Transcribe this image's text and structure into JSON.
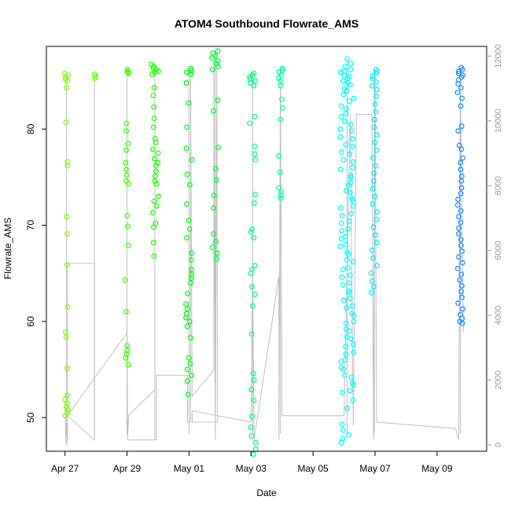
{
  "chart_data": {
    "type": "scatter",
    "title": "ATOM4 Southbound Flowrate_AMS",
    "xlabel": "Date",
    "ylabel": "Flowrate_AMS",
    "x_axis": {
      "unit": "days since Apr 27",
      "range": [
        -0.6,
        13.6
      ],
      "ticks": [
        {
          "label": "Apr 27",
          "value": 0
        },
        {
          "label": "Apr 29",
          "value": 2
        },
        {
          "label": "May 01",
          "value": 4
        },
        {
          "label": "May 03",
          "value": 6
        },
        {
          "label": "May 05",
          "value": 8
        },
        {
          "label": "May 07",
          "value": 10
        },
        {
          "label": "May 09",
          "value": 12
        }
      ]
    },
    "y_axis_left": {
      "range": [
        46.5,
        88.6
      ],
      "ticks": [
        50,
        60,
        70,
        80
      ]
    },
    "y_axis_right": {
      "range": [
        -200,
        12300
      ],
      "ticks": [
        0,
        2000,
        4000,
        6000,
        8000,
        10000,
        12000
      ],
      "color": "#999999"
    },
    "trace_color": "#c0c0c0",
    "clusters": [
      {
        "x_center": 0.05,
        "x_spread": 0.06,
        "color": "#7fff00",
        "y_values": [
          85.8,
          85.6,
          85.4,
          85.2,
          85.0,
          84.3,
          80.7,
          76.6,
          76.2,
          70.9,
          69.1,
          65.9,
          61.5,
          58.9,
          58.4,
          55.1,
          52.3,
          51.9,
          51.5,
          51.1,
          50.8,
          50.5,
          50.2
        ]
      },
      {
        "x_center": 0.95,
        "x_spread": 0.05,
        "color": "#66ff00",
        "y_values": [
          85.7,
          85.5,
          85.3
        ]
      },
      {
        "x_center": 2.0,
        "x_spread": 0.06,
        "color": "#3cff00",
        "y_values": [
          86.2,
          86.0,
          85.9,
          85.8,
          80.6,
          79.8,
          78.5,
          77.8,
          76.5,
          75.8,
          75.2,
          74.6,
          74.3,
          71.0,
          69.9,
          67.9,
          64.3,
          61.0,
          57.5,
          57.0,
          56.6,
          56.2,
          55.5
        ]
      },
      {
        "x_center": 2.9,
        "x_spread": 0.13,
        "color": "#1eff00",
        "y_values": [
          86.7,
          86.5,
          86.3,
          86.2,
          86.0,
          85.9,
          85.7,
          84.3,
          83.5,
          82.3,
          81.1,
          80.2,
          79.0,
          78.6,
          77.9,
          77.5,
          76.9,
          76.5,
          76.2,
          75.6,
          75.1,
          74.6,
          74.3,
          73.0,
          72.5,
          72.0,
          71.3,
          70.2,
          69.8,
          68.2,
          66.8
        ]
      },
      {
        "x_center": 4.0,
        "x_spread": 0.1,
        "color": "#00ff11",
        "y_values": [
          86.3,
          86.1,
          85.9,
          85.7,
          84.8,
          82.7,
          80.2,
          78.0,
          76.8,
          75.3,
          74.2,
          72.2,
          70.5,
          69.6,
          68.7,
          67.1,
          66.4,
          65.4,
          64.9,
          64.5,
          64.0,
          62.9,
          61.8,
          61.3,
          60.8,
          60.4,
          60.0,
          59.5,
          58.3,
          56.2,
          55.6,
          55.0,
          54.4,
          53.8,
          52.4
        ]
      },
      {
        "x_center": 4.85,
        "x_spread": 0.1,
        "color": "#00ff33",
        "y_values": [
          88.1,
          87.9,
          87.6,
          87.4,
          87.1,
          86.8,
          86.5,
          86.2,
          83.0,
          81.9,
          78.1,
          75.9,
          74.7,
          73.1,
          71.8,
          69.1,
          68.3,
          67.7,
          67.1,
          66.5
        ]
      },
      {
        "x_center": 6.05,
        "x_spread": 0.1,
        "color": "#00ff88",
        "y_values": [
          85.8,
          85.6,
          85.4,
          85.2,
          85.0,
          84.8,
          84.5,
          81.3,
          80.6,
          78.2,
          77.4,
          76.8,
          73.2,
          72.3,
          69.6,
          69.3,
          68.7,
          65.8,
          65.4,
          65.0,
          63.6,
          62.8,
          61.6,
          58.7,
          54.6,
          53.9,
          52.9,
          51.8,
          50.1,
          49.0,
          48.1,
          47.4,
          46.7,
          46.2
        ]
      },
      {
        "x_center": 6.95,
        "x_spread": 0.08,
        "color": "#00ffaa",
        "y_values": [
          86.3,
          86.1,
          85.9,
          85.6,
          85.3,
          85.0,
          84.5,
          83.1,
          82.2,
          81.0,
          77.2,
          75.5,
          73.9,
          73.5,
          73.1,
          72.8
        ]
      },
      {
        "x_center": 9.1,
        "x_spread": 0.22,
        "color": "#00ffff",
        "y_values": [
          87.3,
          86.8,
          86.5,
          86.2,
          85.9,
          85.6,
          85.3,
          85.0,
          84.6,
          84.2,
          83.6,
          82.9,
          82.1,
          81.3,
          80.5,
          79.8,
          79.0,
          78.2,
          77.4,
          76.6,
          75.8,
          75.0,
          74.2,
          73.4,
          72.6,
          71.8,
          71.0,
          70.2,
          69.4,
          68.6,
          67.8,
          67.0,
          66.2,
          65.4,
          64.6,
          63.8,
          63.0,
          62.2,
          61.4,
          60.6,
          59.8,
          59.0,
          58.2,
          57.4,
          56.6,
          55.8,
          55.0,
          54.2,
          53.4,
          52.6,
          51.8,
          51.0,
          49.3,
          48.7,
          48.2,
          47.8,
          47.4,
          86.0,
          85.5,
          84.8,
          84.0,
          83.2,
          82.4,
          81.6,
          80.8,
          80.0,
          79.2,
          78.4,
          77.6,
          76.8,
          76.0,
          75.2,
          74.4,
          73.6,
          72.8,
          72.0,
          71.2,
          70.4,
          69.6,
          68.8,
          68.0,
          67.2,
          66.4,
          65.6,
          64.8,
          64.0,
          63.2,
          62.4,
          61.6,
          60.8,
          60.0,
          59.2,
          58.4,
          57.6,
          56.8,
          56.0,
          55.2,
          54.4,
          53.6,
          52.8
        ]
      },
      {
        "x_center": 9.98,
        "x_spread": 0.1,
        "color": "#00f0ff",
        "y_values": [
          86.2,
          86.0,
          85.8,
          85.5,
          85.2,
          84.9,
          84.5,
          84.1,
          83.4,
          82.6,
          81.8,
          81.0,
          80.2,
          79.4,
          78.6,
          77.8,
          77.0,
          76.2,
          75.4,
          74.6,
          73.8,
          73.0,
          72.2,
          71.4,
          70.6,
          69.8,
          69.0,
          68.2,
          67.4,
          66.6,
          65.8,
          65.0,
          64.2,
          63.6,
          63.0
        ]
      },
      {
        "x_center": 12.75,
        "x_spread": 0.09,
        "color": "#1e90ff",
        "y_values": [
          86.4,
          86.2,
          86.0,
          85.8,
          85.6,
          85.4,
          85.1,
          84.7,
          84.3,
          83.8,
          83.2,
          82.4,
          80.3,
          79.8,
          78.3,
          77.9,
          77.0,
          76.5,
          75.8,
          75.1,
          74.6,
          73.9,
          73.3,
          72.7,
          72.1,
          71.5,
          70.9,
          70.3,
          69.7,
          69.1,
          68.5,
          67.9,
          67.3,
          66.7,
          66.1,
          65.5,
          64.9,
          64.3,
          63.7,
          63.1,
          62.5,
          61.9,
          61.3,
          60.7,
          60.3,
          60.0,
          59.8
        ]
      }
    ],
    "trace": {
      "description": "cumulative index line (right axis)",
      "points": [
        [
          0.0,
          1200
        ],
        [
          0.03,
          0
        ],
        [
          0.05,
          700
        ],
        [
          0.08,
          0
        ],
        [
          0.08,
          5600
        ],
        [
          0.95,
          5600
        ],
        [
          0.95,
          150
        ],
        [
          0.08,
          900
        ],
        [
          2.0,
          3450
        ],
        [
          2.0,
          4200
        ],
        [
          2.02,
          150
        ],
        [
          2.05,
          900
        ],
        [
          2.9,
          1700
        ],
        [
          2.9,
          150
        ],
        [
          2.02,
          150
        ],
        [
          2.95,
          150
        ],
        [
          2.95,
          2150
        ],
        [
          3.95,
          2150
        ],
        [
          3.95,
          700
        ],
        [
          4.05,
          700
        ],
        [
          4.05,
          11300
        ],
        [
          4.1,
          1500
        ],
        [
          4.8,
          2300
        ],
        [
          4.8,
          11900
        ],
        [
          4.85,
          150
        ],
        [
          4.9,
          11600
        ],
        [
          4.92,
          700
        ],
        [
          4.1,
          700
        ],
        [
          4.1,
          1050
        ],
        [
          6.0,
          700
        ],
        [
          6.05,
          5500
        ],
        [
          6.1,
          150
        ],
        [
          6.9,
          5200
        ],
        [
          6.9,
          150
        ],
        [
          6.95,
          11400
        ],
        [
          7.0,
          900
        ],
        [
          9.0,
          900
        ],
        [
          9.2,
          10200
        ],
        [
          9.3,
          600
        ],
        [
          9.4,
          10200
        ],
        [
          9.9,
          10200
        ],
        [
          9.95,
          150
        ],
        [
          10.0,
          11500
        ],
        [
          10.05,
          700
        ],
        [
          12.6,
          500
        ],
        [
          12.7,
          150
        ],
        [
          12.75,
          11500
        ],
        [
          12.85,
          3500
        ]
      ]
    }
  }
}
